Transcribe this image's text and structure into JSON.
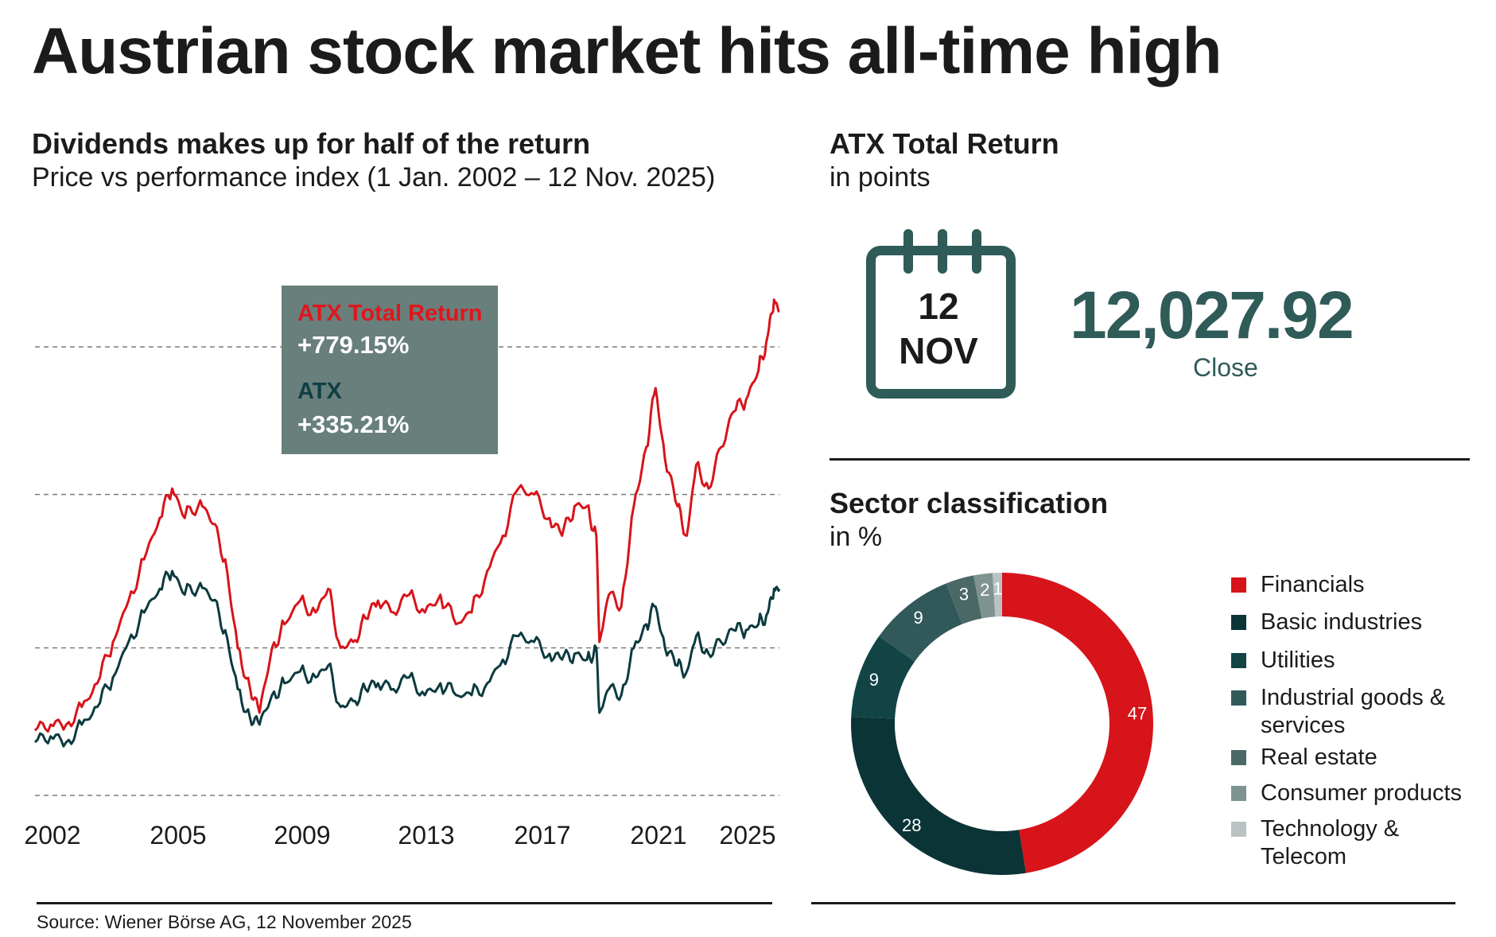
{
  "header": {
    "title": "Austrian stock market hits all-time high"
  },
  "left_panel": {
    "title": "Dividends makes up for half of the return",
    "subtitle": "Price vs performance index (1 Jan. 2002 – 12 Nov. 2025)"
  },
  "right_top": {
    "title": "ATX Total Return",
    "subtitle": "in points",
    "calendar_day": "12",
    "calendar_month": "NOV",
    "value": "12,027.92",
    "value_label": "Close"
  },
  "right_bottom": {
    "title": "Sector classification",
    "subtitle": "in %"
  },
  "legend_box": {
    "series1_name": "ATX Total Return",
    "series1_change": "+779.15%",
    "series2_name": "ATX",
    "series2_change": "+335.21%"
  },
  "source": "Source: Wiener Börse AG, 12 November 2025",
  "colors": {
    "red": "#d7141a",
    "teal_dark": "#0c3a3e",
    "legend_bg": "#687f7c",
    "accent": "#2f5b58"
  },
  "chart_data": [
    {
      "type": "line",
      "title": "Dividends makes up for half of the return",
      "subtitle": "Price vs performance index (1 Jan. 2002 – 12 Nov. 2025)",
      "x_tick_labels": [
        "2002",
        "2005",
        "2009",
        "2013",
        "2017",
        "2021",
        "2025"
      ],
      "xlim": [
        2002.0,
        2025.87
      ],
      "y_units": "relative index level (estimated)",
      "ylim": [
        0,
        100
      ],
      "grid_levels": [
        0,
        25,
        51,
        76
      ],
      "series": [
        {
          "name": "ATX Total Return",
          "color": "#d7141a",
          "change": "+779.15%",
          "points": [
            [
              2002.0,
              11
            ],
            [
              2002.5,
              12
            ],
            [
              2003.0,
              12
            ],
            [
              2003.5,
              15
            ],
            [
              2004.0,
              19
            ],
            [
              2004.5,
              26
            ],
            [
              2005.0,
              33
            ],
            [
              2005.5,
              40
            ],
            [
              2006.0,
              47
            ],
            [
              2006.4,
              52
            ],
            [
              2006.8,
              47
            ],
            [
              2007.3,
              50
            ],
            [
              2007.7,
              46
            ],
            [
              2008.1,
              40
            ],
            [
              2008.5,
              25
            ],
            [
              2008.9,
              18
            ],
            [
              2009.2,
              14
            ],
            [
              2009.6,
              25
            ],
            [
              2010.0,
              29
            ],
            [
              2010.5,
              33
            ],
            [
              2011.0,
              31
            ],
            [
              2011.4,
              35
            ],
            [
              2011.8,
              25
            ],
            [
              2012.2,
              26
            ],
            [
              2012.6,
              30
            ],
            [
              2013.0,
              33
            ],
            [
              2013.5,
              31
            ],
            [
              2014.0,
              34
            ],
            [
              2014.5,
              31
            ],
            [
              2015.0,
              34
            ],
            [
              2015.5,
              29
            ],
            [
              2016.0,
              31
            ],
            [
              2016.5,
              38
            ],
            [
              2017.0,
              44
            ],
            [
              2017.5,
              52
            ],
            [
              2018.0,
              51
            ],
            [
              2018.5,
              47
            ],
            [
              2018.9,
              44
            ],
            [
              2019.3,
              49
            ],
            [
              2019.7,
              49
            ],
            [
              2020.0,
              44
            ],
            [
              2020.1,
              26
            ],
            [
              2020.4,
              34
            ],
            [
              2020.8,
              32
            ],
            [
              2021.2,
              49
            ],
            [
              2021.6,
              59
            ],
            [
              2021.9,
              69
            ],
            [
              2022.2,
              57
            ],
            [
              2022.6,
              49
            ],
            [
              2022.9,
              44
            ],
            [
              2023.2,
              56
            ],
            [
              2023.6,
              52
            ],
            [
              2024.0,
              59
            ],
            [
              2024.4,
              65
            ],
            [
              2024.8,
              67
            ],
            [
              2025.2,
              72
            ],
            [
              2025.5,
              78
            ],
            [
              2025.7,
              84
            ],
            [
              2025.87,
              82
            ]
          ]
        },
        {
          "name": "ATX",
          "color": "#0c3a3e",
          "change": "+335.21%",
          "points": [
            [
              2002.0,
              9
            ],
            [
              2002.5,
              10
            ],
            [
              2003.0,
              9
            ],
            [
              2003.5,
              12
            ],
            [
              2004.0,
              15
            ],
            [
              2004.5,
              20
            ],
            [
              2005.0,
              26
            ],
            [
              2005.5,
              31
            ],
            [
              2006.0,
              35
            ],
            [
              2006.4,
              38
            ],
            [
              2006.8,
              34
            ],
            [
              2007.3,
              36
            ],
            [
              2007.7,
              33
            ],
            [
              2008.1,
              28
            ],
            [
              2008.5,
              18
            ],
            [
              2008.9,
              13
            ],
            [
              2009.2,
              12
            ],
            [
              2009.6,
              17
            ],
            [
              2010.0,
              19
            ],
            [
              2010.5,
              21
            ],
            [
              2011.0,
              20
            ],
            [
              2011.4,
              22
            ],
            [
              2011.8,
              15
            ],
            [
              2012.2,
              16
            ],
            [
              2012.6,
              18
            ],
            [
              2013.0,
              19
            ],
            [
              2013.5,
              18
            ],
            [
              2014.0,
              20
            ],
            [
              2014.5,
              17
            ],
            [
              2015.0,
              19
            ],
            [
              2015.5,
              17
            ],
            [
              2016.0,
              17
            ],
            [
              2016.5,
              19
            ],
            [
              2017.0,
              23
            ],
            [
              2017.5,
              27
            ],
            [
              2018.0,
              26
            ],
            [
              2018.5,
              24
            ],
            [
              2018.9,
              23
            ],
            [
              2019.3,
              24
            ],
            [
              2019.7,
              23
            ],
            [
              2020.0,
              25
            ],
            [
              2020.1,
              14
            ],
            [
              2020.4,
              18
            ],
            [
              2020.8,
              17
            ],
            [
              2021.2,
              25
            ],
            [
              2021.6,
              29
            ],
            [
              2021.9,
              32
            ],
            [
              2022.2,
              25
            ],
            [
              2022.6,
              22
            ],
            [
              2022.9,
              21
            ],
            [
              2023.2,
              27
            ],
            [
              2023.6,
              24
            ],
            [
              2024.0,
              26
            ],
            [
              2024.4,
              28
            ],
            [
              2024.8,
              28
            ],
            [
              2025.2,
              29
            ],
            [
              2025.5,
              31
            ],
            [
              2025.7,
              35
            ],
            [
              2025.87,
              35
            ]
          ]
        }
      ]
    },
    {
      "type": "pie",
      "title": "Sector classification",
      "subtitle": "in %",
      "categories": [
        "Financials",
        "Basic industries",
        "Utilities",
        "Industrial goods & services",
        "Real estate",
        "Consumer products",
        "Technology & Telecom"
      ],
      "values": [
        47,
        28,
        9,
        9,
        3,
        2,
        1
      ],
      "colors": [
        "#d7141a",
        "#0b3436",
        "#124446",
        "#32595a",
        "#4a6866",
        "#7f9391",
        "#b8c3c2"
      ],
      "legend": "right"
    }
  ]
}
